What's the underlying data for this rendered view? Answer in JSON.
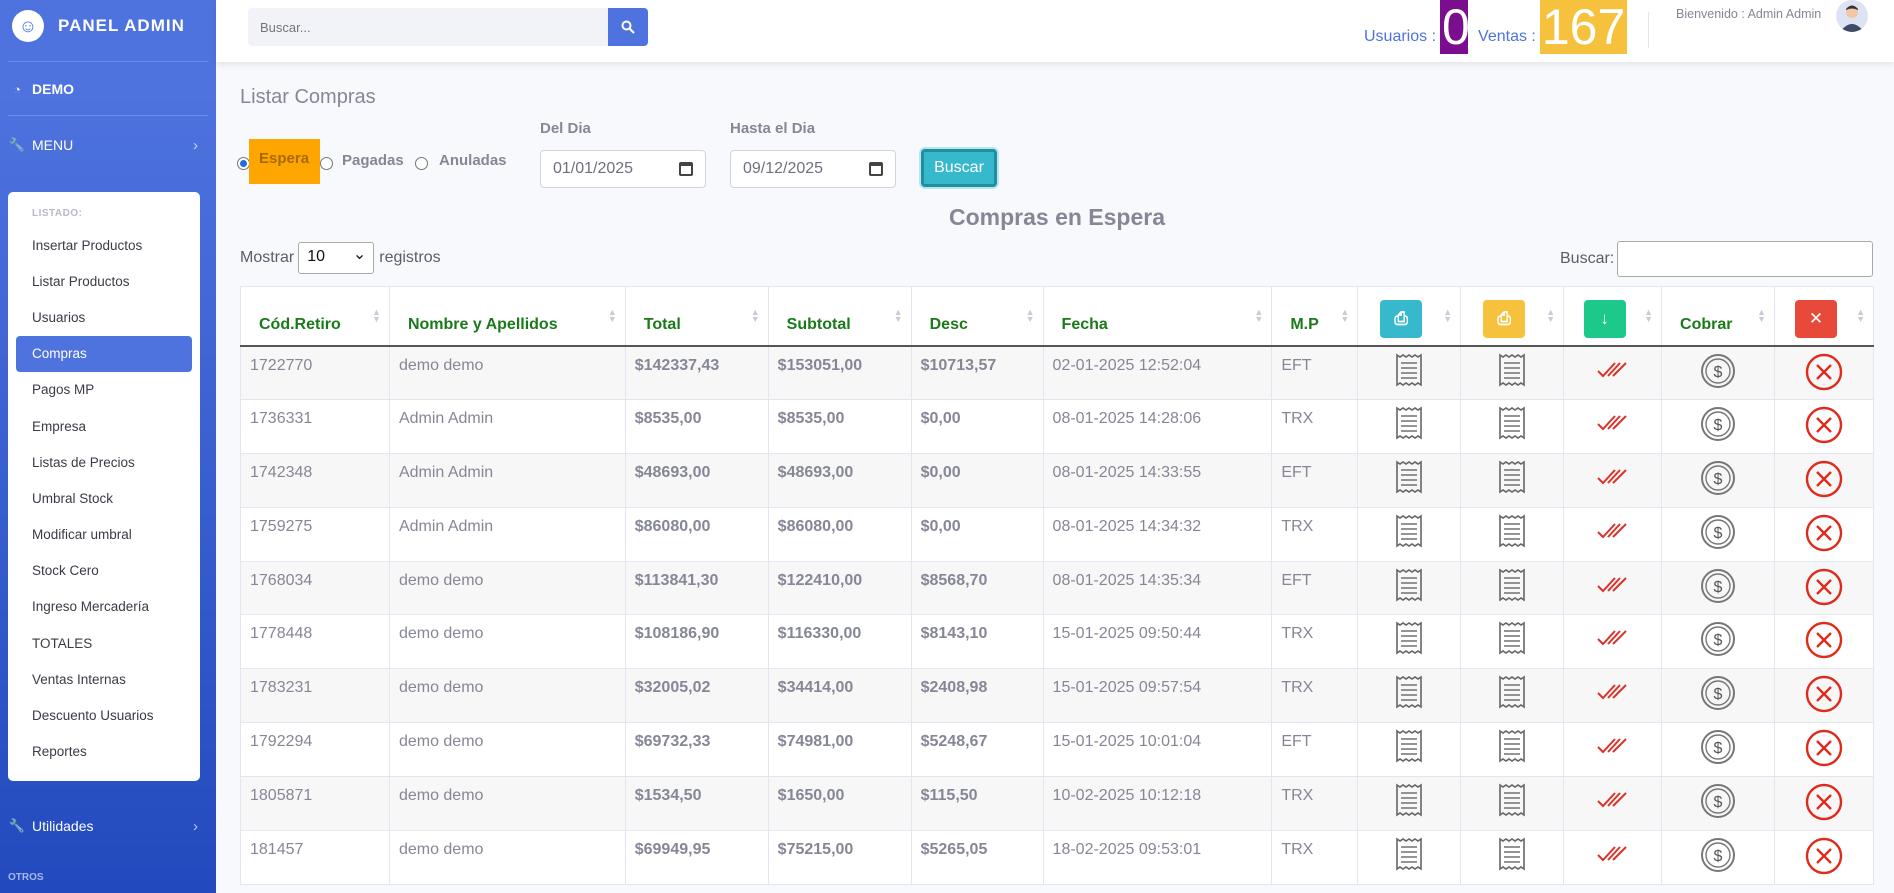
{
  "sidebar": {
    "brand": "PANEL ADMIN",
    "demo": "DEMO",
    "menu": "MENU",
    "submenu_header": "LISTADO:",
    "items": [
      "Insertar Productos",
      "Listar Productos",
      "Usuarios",
      "Compras",
      "Pagos MP",
      "Empresa",
      "Listas de Precios",
      "Umbral Stock",
      "Modificar umbral",
      "Stock Cero",
      "Ingreso Mercadería",
      "TOTALES",
      "Ventas Internas",
      "Descuento Usuarios",
      "Reportes"
    ],
    "active_item": "Compras",
    "utilidades": "Utilidades",
    "otros": "OTROS"
  },
  "topbar": {
    "search_placeholder": "Buscar...",
    "usuarios_label": "Usuarios :",
    "usuarios_value": "0",
    "ventas_label": "Ventas :",
    "ventas_value": "167",
    "welcome": "Bienvenido : Admin Admin"
  },
  "page": {
    "title": "Listar Compras",
    "radio_espera": "Espera",
    "radio_pagadas": "Pagadas",
    "radio_anuladas": "Anuladas",
    "from_label": "Del Dia",
    "from_value": "01/01/2025",
    "to_label": "Hasta el Dia",
    "to_value": "09/12/2025",
    "buscar_button": "Buscar",
    "table_title": "Compras en Espera",
    "mostrar": "Mostrar",
    "page_size": "10",
    "registros": "registros",
    "table_search_label": "Buscar:"
  },
  "table": {
    "headers": [
      "Cód.Retiro",
      "Nombre y Apellidos",
      "Total",
      "Subtotal",
      "Desc",
      "Fecha",
      "M.P",
      "",
      "",
      "",
      "Cobrar",
      ""
    ],
    "rows": [
      [
        "1722770",
        "demo demo",
        "$142337,43",
        "$153051,00",
        "$10713,57",
        "02-01-2025 12:52:04",
        "EFT"
      ],
      [
        "1736331",
        "Admin Admin",
        "$8535,00",
        "$8535,00",
        "$0,00",
        "08-01-2025 14:28:06",
        "TRX"
      ],
      [
        "1742348",
        "Admin Admin",
        "$48693,00",
        "$48693,00",
        "$0,00",
        "08-01-2025 14:33:55",
        "EFT"
      ],
      [
        "1759275",
        "Admin Admin",
        "$86080,00",
        "$86080,00",
        "$0,00",
        "08-01-2025 14:34:32",
        "TRX"
      ],
      [
        "1768034",
        "demo demo",
        "$113841,30",
        "$122410,00",
        "$8568,70",
        "08-01-2025 14:35:34",
        "EFT"
      ],
      [
        "1778448",
        "demo demo",
        "$108186,90",
        "$116330,00",
        "$8143,10",
        "15-01-2025 09:50:44",
        "TRX"
      ],
      [
        "1783231",
        "demo demo",
        "$32005,02",
        "$34414,00",
        "$2408,98",
        "15-01-2025 09:57:54",
        "TRX"
      ],
      [
        "1792294",
        "demo demo",
        "$69732,33",
        "$74981,00",
        "$5248,67",
        "15-01-2025 10:01:04",
        "EFT"
      ],
      [
        "1805871",
        "demo demo",
        "$1534,50",
        "$1650,00",
        "$115,50",
        "10-02-2025 10:12:18",
        "TRX"
      ],
      [
        "181457",
        "demo demo",
        "$69949,95",
        "$75215,00",
        "$5265,05",
        "18-02-2025 09:53:01",
        "TRX"
      ]
    ]
  },
  "colors": {
    "primary": "#4e73df",
    "info": "#36b9cc",
    "warning": "#f6c23e",
    "success": "#1cc88a",
    "danger": "#e74a3b",
    "purple": "#7b0e8f",
    "orange": "#ffa500"
  }
}
